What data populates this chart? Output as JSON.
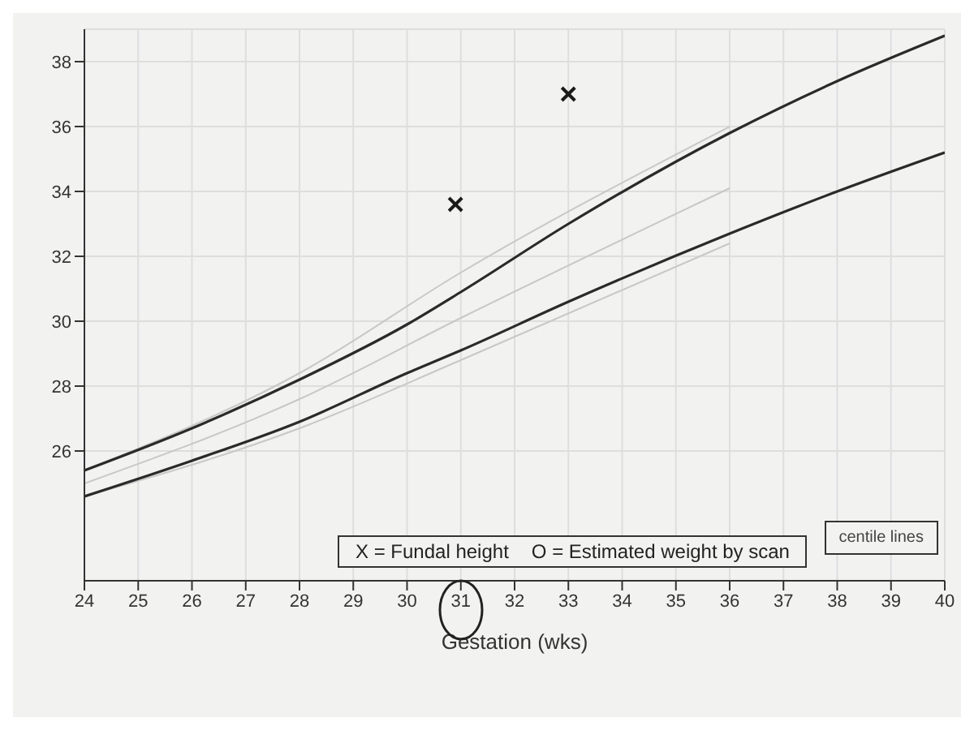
{
  "chart_data": {
    "type": "line",
    "xlabel": "Gestation (wks)",
    "grid": true,
    "marker": "none",
    "line_style": "solid",
    "xlim": [
      24,
      40
    ],
    "xticks": [
      24,
      25,
      26,
      27,
      28,
      29,
      30,
      31,
      32,
      33,
      34,
      35,
      36,
      37,
      38,
      39,
      40
    ],
    "ylim": [
      22,
      39
    ],
    "yticks": [
      26,
      28,
      30,
      32,
      34,
      36,
      38
    ],
    "annotations": [
      "X = Fundal height",
      "O = Estimated weight by scan",
      "centile lines"
    ],
    "series": [
      {
        "color": "#c8c8c8",
        "x": [
          24,
          28,
          31,
          36
        ],
        "values": [
          25.4,
          28.4,
          31.5,
          36.0
        ]
      },
      {
        "color": "#c8c8c8",
        "x": [
          24,
          28,
          31,
          36
        ],
        "values": [
          25.0,
          27.6,
          30.1,
          34.1
        ]
      },
      {
        "color": "#c8c8c8",
        "x": [
          24,
          28,
          31,
          36
        ],
        "values": [
          24.6,
          26.7,
          28.8,
          32.4
        ]
      },
      {
        "color": "#2a2a2a",
        "x": [
          24,
          26,
          28,
          30,
          31,
          33,
          36,
          38,
          40
        ],
        "values": [
          25.4,
          26.7,
          28.2,
          29.9,
          30.9,
          33.0,
          35.8,
          37.4,
          38.8
        ]
      },
      {
        "color": "#2a2a2a",
        "x": [
          24,
          26,
          28,
          30,
          31,
          33,
          36,
          38,
          40
        ],
        "values": [
          24.6,
          25.7,
          26.9,
          28.4,
          29.1,
          30.6,
          32.7,
          34.0,
          35.2
        ]
      },
      {
        "type": "scatter",
        "marker": "cross",
        "color": "#1a1a1a",
        "x": [
          30.9,
          33
        ],
        "values": [
          33.6,
          37.0
        ]
      }
    ]
  }
}
